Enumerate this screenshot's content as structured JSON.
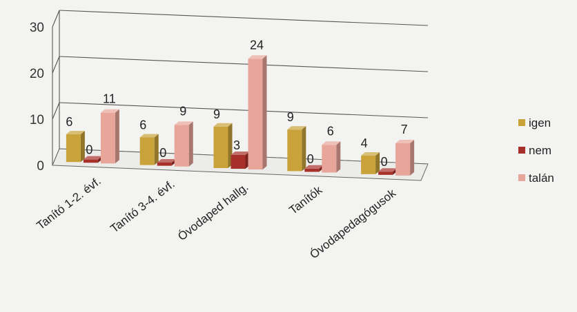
{
  "chart_data": {
    "type": "bar",
    "title": "",
    "xlabel": "",
    "ylabel": "",
    "ylim": [
      0,
      30
    ],
    "yticks": [
      0,
      10,
      20,
      30
    ],
    "grid": true,
    "legend_position": "right",
    "categories": [
      "Tanító 1-2. évf.",
      "Tanító 3-4. évf.",
      "Óvodaped hallg.",
      "Tanítók",
      "Óvodapedagógusok"
    ],
    "series": [
      {
        "name": "igen",
        "values": [
          6,
          6,
          9,
          9,
          4
        ],
        "color": "#c9a23a"
      },
      {
        "name": "nem",
        "values": [
          0,
          0,
          3,
          0,
          0
        ],
        "color": "#a8302a"
      },
      {
        "name": "talán",
        "values": [
          11,
          9,
          24,
          6,
          7
        ],
        "color": "#e8a59a"
      }
    ],
    "bar_labels": [
      [
        "6",
        "6",
        "9",
        "9",
        "4"
      ],
      [
        "0",
        "0",
        "3",
        "0",
        "0"
      ],
      [
        "11",
        "9",
        "24",
        "6",
        "7"
      ]
    ]
  }
}
